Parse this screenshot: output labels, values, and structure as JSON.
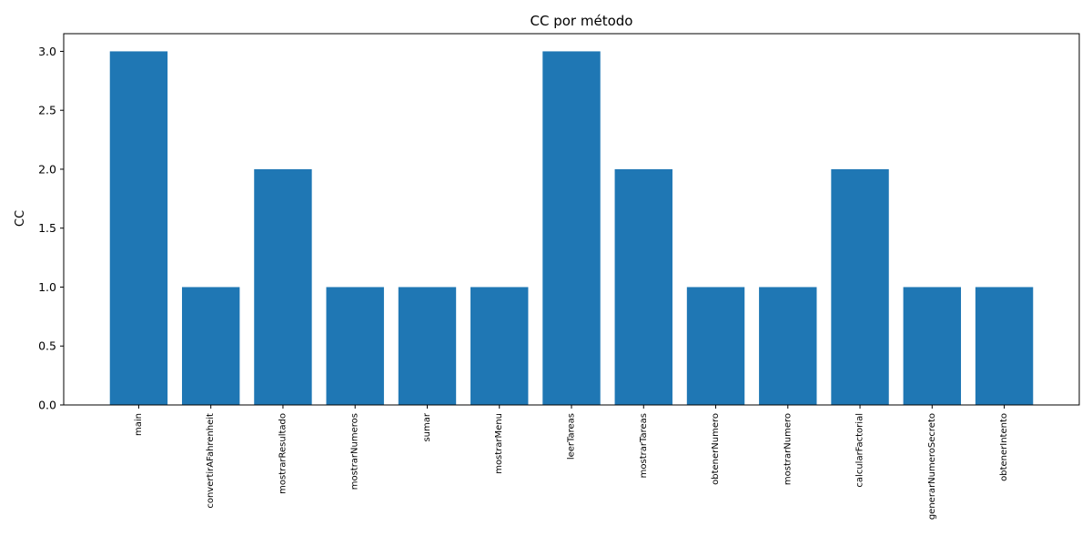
{
  "chart_data": {
    "type": "bar",
    "title": "CC por método",
    "xlabel": "",
    "ylabel": "CC",
    "categories": [
      "main",
      "convertirAFahrenheit",
      "mostrarResultado",
      "mostrarNumeros",
      "sumar",
      "mostrarMenu",
      "leerTareas",
      "mostrarTareas",
      "obtenerNumero",
      "mostrarNumero",
      "calcularFactorial",
      "generarNumeroSecreto",
      "obtenerIntento"
    ],
    "values": [
      3,
      1,
      2,
      1,
      1,
      1,
      3,
      2,
      1,
      1,
      2,
      1,
      1
    ],
    "ylim": [
      0,
      3.15
    ],
    "yticks": [
      "0.0",
      "0.5",
      "1.0",
      "1.5",
      "2.0",
      "2.5",
      "3.0"
    ],
    "grid": false,
    "legend": "none",
    "bar_color": "#1f77b4"
  }
}
